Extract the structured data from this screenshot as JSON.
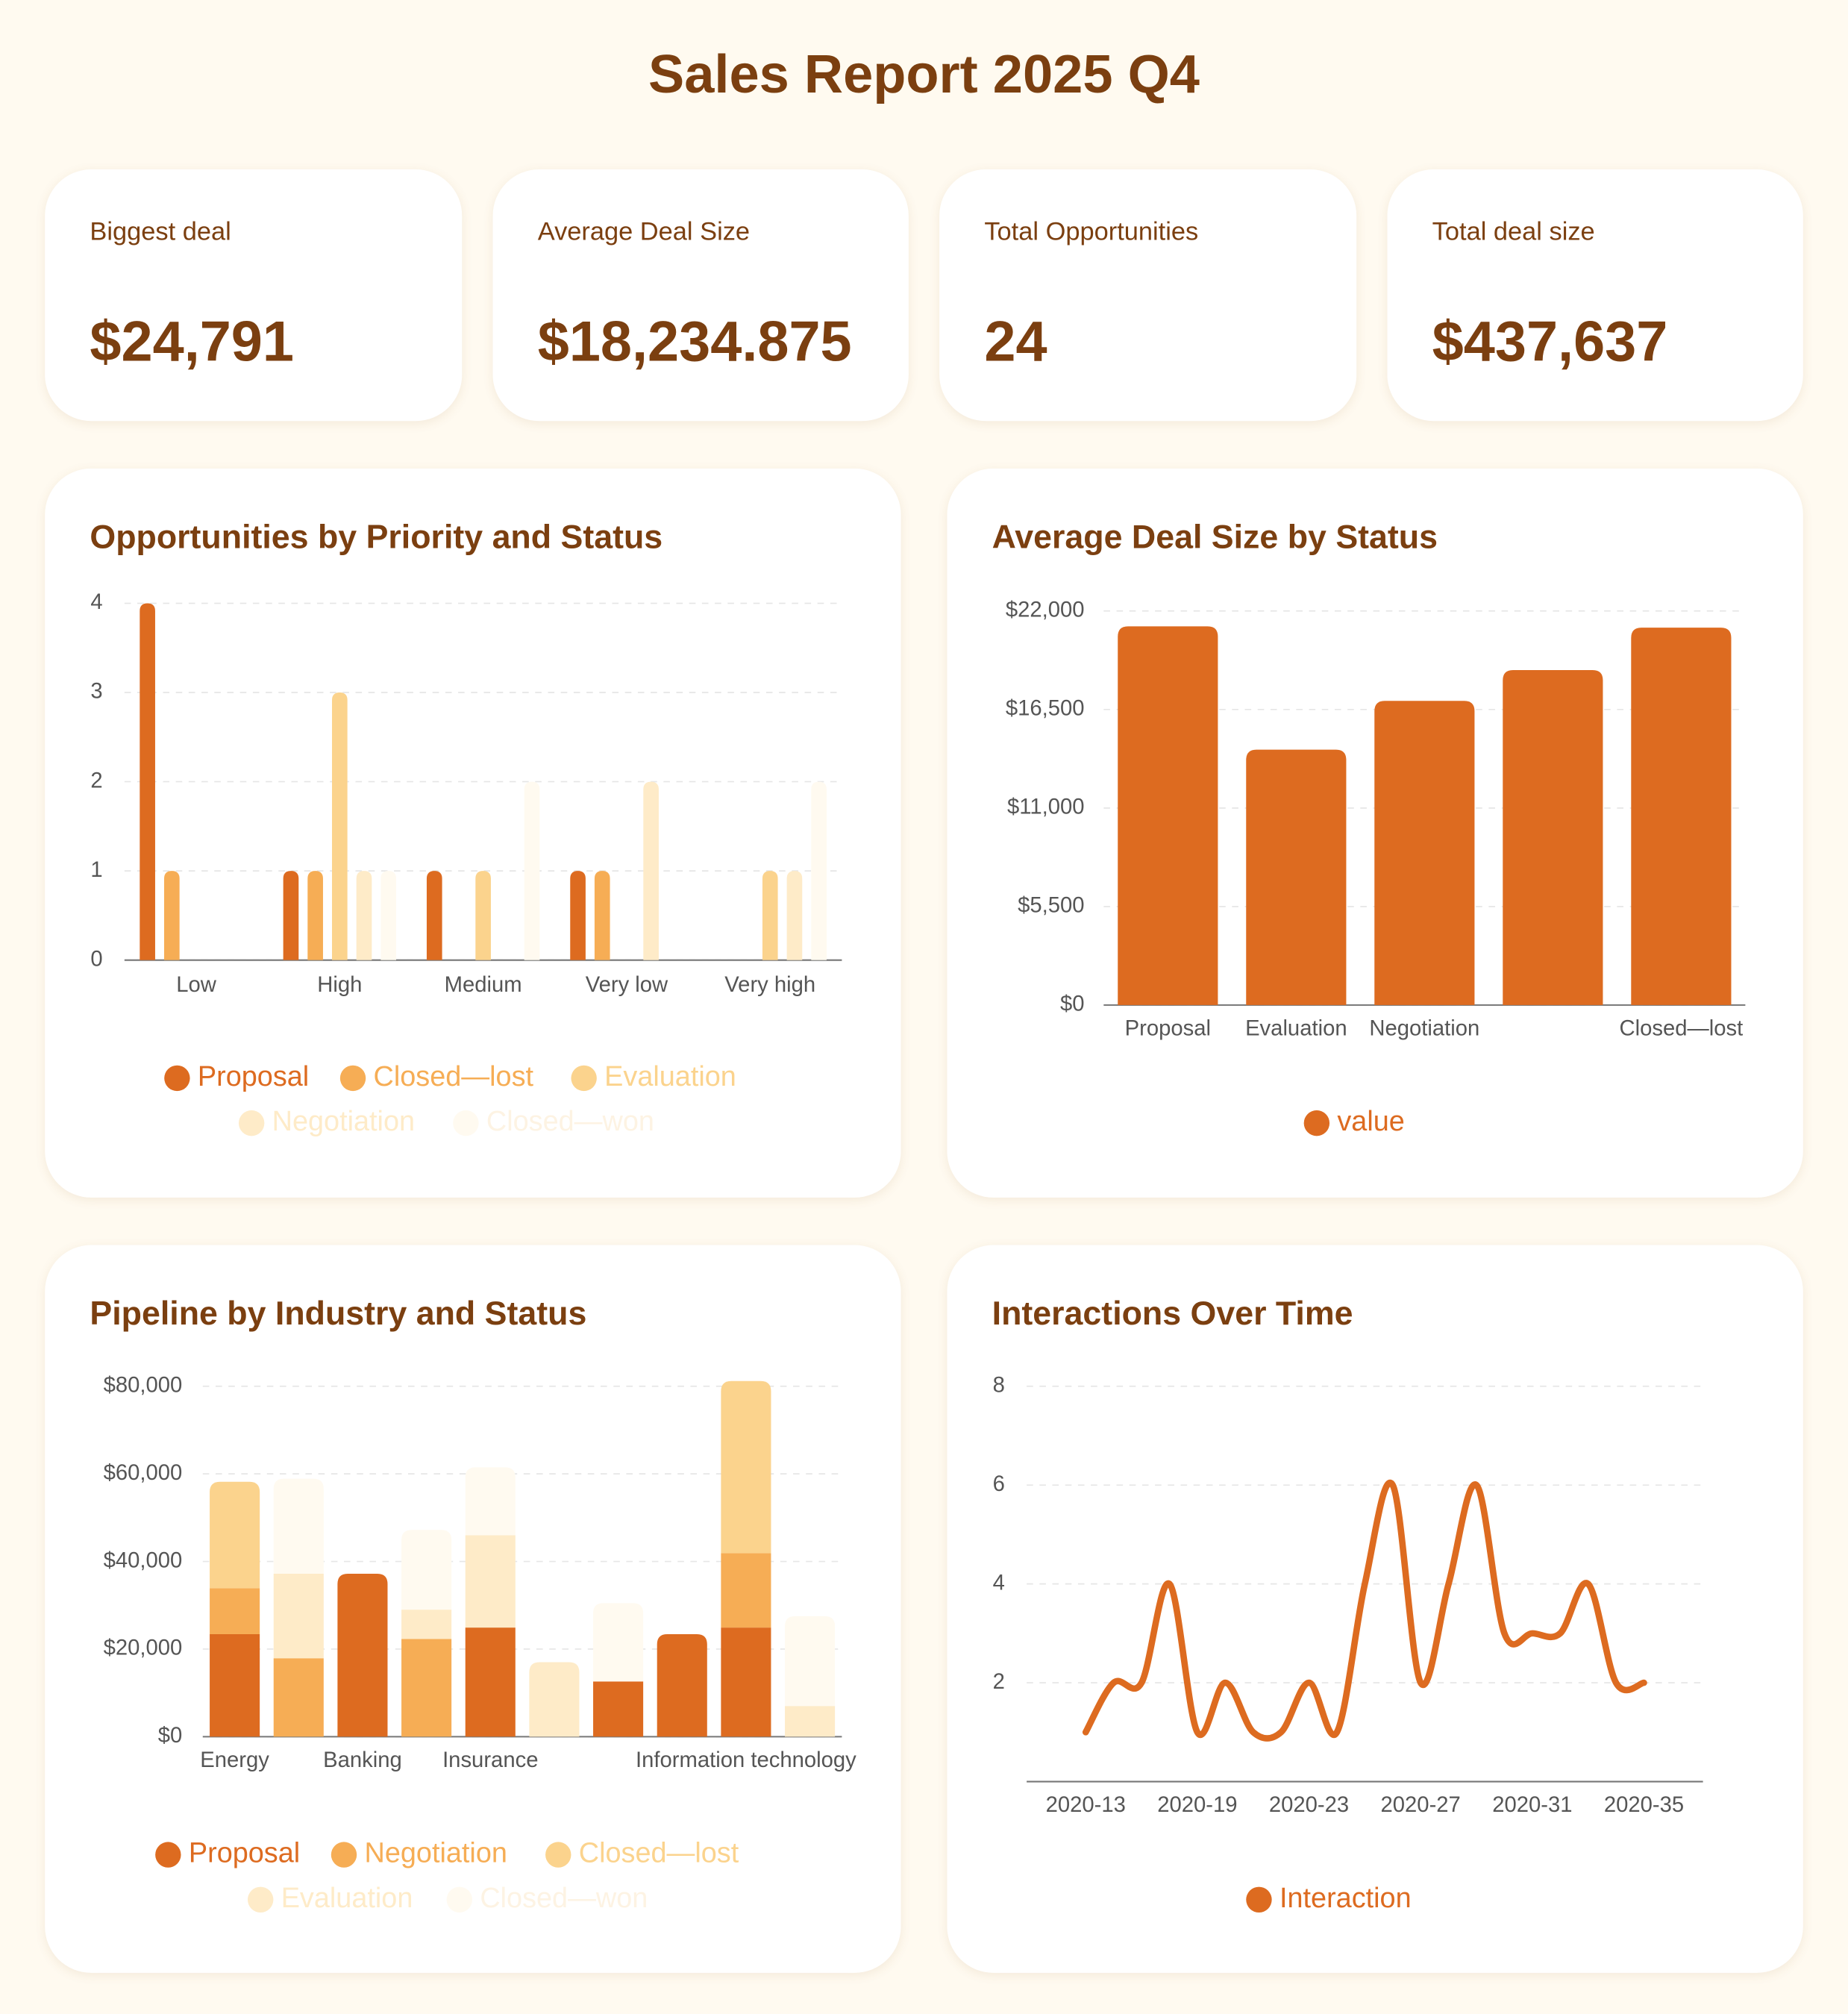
{
  "title": "Sales Report 2025 Q4",
  "kpis": [
    {
      "label": "Biggest deal",
      "value": "$24,791"
    },
    {
      "label": "Average Deal Size",
      "value": "$18,234.875"
    },
    {
      "label": "Total Opportunities",
      "value": "24"
    },
    {
      "label": "Total deal size",
      "value": "$437,637"
    }
  ],
  "chart_data": [
    {
      "type": "bar",
      "title": "Opportunities by Priority and Status",
      "categories": [
        "Low",
        "High",
        "Medium",
        "Very low",
        "Very high"
      ],
      "series": [
        {
          "name": "Proposal",
          "color": "#dd6b20",
          "values": [
            4,
            1,
            1,
            1,
            0
          ]
        },
        {
          "name": "Closed—lost",
          "color": "#f6ad55",
          "values": [
            1,
            1,
            0,
            1,
            0
          ]
        },
        {
          "name": "Evaluation",
          "color": "#fbd38d",
          "values": [
            0,
            3,
            1,
            0,
            1
          ]
        },
        {
          "name": "Negotiation",
          "color": "#feebc8",
          "values": [
            0,
            1,
            0,
            2,
            1
          ]
        },
        {
          "name": "Closed—won",
          "color": "#fffaf0",
          "values": [
            0,
            1,
            2,
            0,
            2
          ]
        }
      ],
      "ylim": [
        0,
        4
      ],
      "yticks": [
        0,
        1,
        2,
        3,
        4
      ],
      "grid": true,
      "legend": "bottom"
    },
    {
      "type": "bar",
      "title": "Average Deal Size by Status",
      "categories": [
        "Proposal",
        "Evaluation",
        "Negotiation",
        null,
        "Closed—lost"
      ],
      "series": [
        {
          "name": "value",
          "color": "#dd6b20",
          "values": [
            21140,
            14260,
            16980,
            18700,
            21070
          ]
        }
      ],
      "ylim": [
        0,
        22000
      ],
      "yticks": [
        {
          "value": 0,
          "label": "$0"
        },
        {
          "value": 5500,
          "label": "$5,500"
        },
        {
          "value": 11000,
          "label": "$11,000"
        },
        {
          "value": 16500,
          "label": "$16,500"
        },
        {
          "value": 22000,
          "label": "$22,000"
        }
      ],
      "grid": true,
      "legend": "bottom"
    },
    {
      "type": "bar",
      "stacked": true,
      "title": "Pipeline by Industry and Status",
      "categories": [
        "Energy",
        null,
        "Banking",
        null,
        "Insurance",
        null,
        null,
        null,
        "Information technology",
        null
      ],
      "series": [
        {
          "name": "Proposal",
          "color": "#dd6b20",
          "values": [
            23400,
            0,
            37200,
            0,
            24900,
            0,
            12600,
            23400,
            24900,
            0
          ]
        },
        {
          "name": "Negotiation",
          "color": "#f6ad55",
          "values": [
            10500,
            17900,
            0,
            22300,
            0,
            0,
            0,
            0,
            17000,
            0
          ]
        },
        {
          "name": "Closed—lost",
          "color": "#fbd38d",
          "values": [
            24300,
            0,
            0,
            0,
            0,
            0,
            0,
            0,
            39300,
            0
          ]
        },
        {
          "name": "Evaluation",
          "color": "#feebc8",
          "values": [
            0,
            19300,
            0,
            6700,
            21100,
            17000,
            0,
            0,
            0,
            7000
          ]
        },
        {
          "name": "Closed—won",
          "color": "#fffaf0",
          "values": [
            0,
            21700,
            0,
            18200,
            15500,
            0,
            17900,
            0,
            0,
            20500
          ]
        }
      ],
      "ylim": [
        0,
        80000
      ],
      "yticks": [
        {
          "value": 0,
          "label": "$0"
        },
        {
          "value": 20000,
          "label": "$20,000"
        },
        {
          "value": 40000,
          "label": "$40,000"
        },
        {
          "value": 60000,
          "label": "$60,000"
        },
        {
          "value": 80000,
          "label": "$80,000"
        }
      ],
      "grid": true,
      "legend": "bottom"
    },
    {
      "type": "line",
      "title": "Interactions Over Time",
      "categories": [
        "2020-13",
        null,
        null,
        null,
        "2020-19",
        null,
        null,
        null,
        "2020-23",
        null,
        null,
        null,
        "2020-27",
        null,
        null,
        null,
        "2020-31",
        null,
        null,
        null,
        "2020-35"
      ],
      "series": [
        {
          "name": "Interaction",
          "color": "#dd6b20",
          "values": [
            1,
            2,
            2,
            4,
            1,
            2,
            1,
            1,
            2,
            1,
            4,
            6,
            2,
            4,
            6,
            3,
            3,
            3,
            4,
            2,
            2
          ]
        }
      ],
      "ylim": [
        0,
        8
      ],
      "yticks": [
        2,
        4,
        6,
        8
      ],
      "grid": true,
      "legend": "bottom"
    }
  ]
}
